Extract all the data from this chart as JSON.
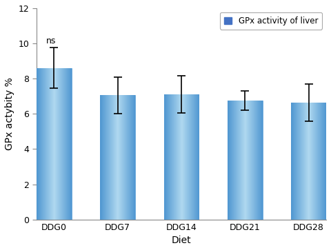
{
  "categories": [
    "DDG0",
    "DDG7",
    "DDG14",
    "DDG21",
    "DDG28"
  ],
  "values": [
    8.6,
    7.05,
    7.1,
    6.75,
    6.65
  ],
  "errors": [
    1.15,
    1.05,
    1.05,
    0.55,
    1.05
  ],
  "bar_color": "#4f96d0",
  "bar_color_dark": "#2b6ea8",
  "xlabel": "Diet",
  "ylabel": "GPx actybity %",
  "ylim": [
    0,
    12
  ],
  "yticks": [
    0,
    2,
    4,
    6,
    8,
    10,
    12
  ],
  "legend_label": "GPx activity of liver",
  "legend_color": "#4472c4",
  "annotation_text": "ns",
  "annotation_bar_index": 0,
  "title": "",
  "figsize": [
    4.8,
    3.63
  ],
  "dpi": 100,
  "bg_color": "#ffffff",
  "bar_width": 0.55
}
